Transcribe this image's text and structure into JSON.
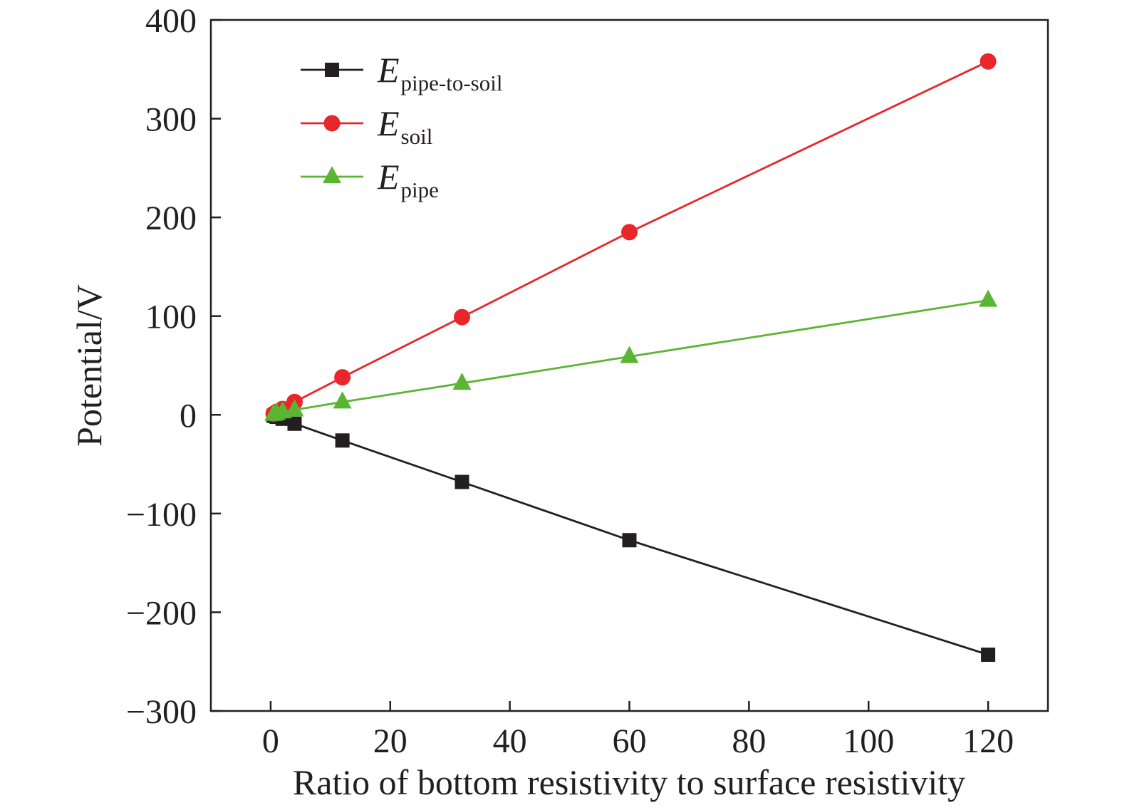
{
  "chart_data": {
    "type": "line",
    "xlabel": "Ratio of bottom resistivity to surface resistivity",
    "ylabel": "Potential/V",
    "xlim": [
      -10,
      130
    ],
    "ylim": [
      -300,
      400
    ],
    "xticks": [
      0,
      20,
      40,
      60,
      80,
      100,
      120
    ],
    "yticks": [
      -300,
      -200,
      -100,
      0,
      100,
      200,
      300,
      400
    ],
    "xtick_labels": [
      "0",
      "20",
      "40",
      "60",
      "80",
      "100",
      "120"
    ],
    "ytick_labels": [
      "−300",
      "−200",
      "−100",
      "0",
      "100",
      "200",
      "300",
      "400"
    ],
    "grid": false,
    "legend_position": "top-left",
    "x": [
      0.5,
      1,
      2,
      4,
      12,
      32,
      60,
      120
    ],
    "series": [
      {
        "name": "E",
        "name_sub": "pipe-to-soil",
        "marker": "square",
        "color": "#231f20",
        "values": [
          -1,
          -2,
          -4,
          -9,
          -26,
          -68,
          -127,
          -243
        ]
      },
      {
        "name": "E",
        "name_sub": "soil",
        "marker": "circle",
        "color": "#e8262c",
        "values": [
          1,
          3,
          6,
          13,
          38,
          99,
          185,
          358
        ]
      },
      {
        "name": "E",
        "name_sub": "pipe",
        "marker": "triangle",
        "color": "#5ab533",
        "values": [
          0.5,
          1.5,
          3,
          5,
          13,
          32,
          59,
          116
        ]
      }
    ]
  }
}
